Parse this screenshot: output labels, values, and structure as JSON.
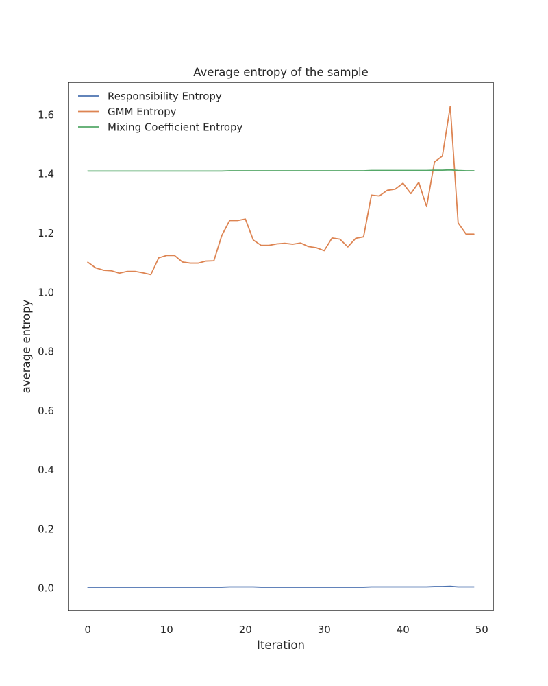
{
  "chart_data": {
    "type": "line",
    "title": "Average entropy of the sample",
    "xlabel": "Iteration",
    "ylabel": "average entropy",
    "xlim": [
      -2.45,
      51.45
    ],
    "ylim": [
      -0.075,
      1.71
    ],
    "xticks": [
      "0",
      "10",
      "20",
      "30",
      "40",
      "50"
    ],
    "xtick_values": [
      0,
      10,
      20,
      30,
      40,
      50
    ],
    "yticks": [
      "0.0",
      "0.2",
      "0.4",
      "0.6",
      "0.8",
      "1.0",
      "1.2",
      "1.4",
      "1.6"
    ],
    "ytick_values": [
      0.0,
      0.2,
      0.4,
      0.6,
      0.8,
      1.0,
      1.2,
      1.4,
      1.6
    ],
    "grid": false,
    "legend_position": "top-left",
    "x": [
      0,
      1,
      2,
      3,
      4,
      5,
      6,
      7,
      8,
      9,
      10,
      11,
      12,
      13,
      14,
      15,
      16,
      17,
      18,
      19,
      20,
      21,
      22,
      23,
      24,
      25,
      26,
      27,
      28,
      29,
      30,
      31,
      32,
      33,
      34,
      35,
      36,
      37,
      38,
      39,
      40,
      41,
      42,
      43,
      44,
      45,
      46,
      47,
      48,
      49
    ],
    "series": [
      {
        "name": "Responsibility Entropy",
        "color": "#4c72b0",
        "values": [
          0.004,
          0.004,
          0.004,
          0.004,
          0.004,
          0.004,
          0.004,
          0.004,
          0.004,
          0.004,
          0.004,
          0.004,
          0.004,
          0.004,
          0.004,
          0.004,
          0.004,
          0.004,
          0.005,
          0.005,
          0.005,
          0.005,
          0.004,
          0.004,
          0.004,
          0.004,
          0.004,
          0.004,
          0.004,
          0.004,
          0.004,
          0.004,
          0.004,
          0.004,
          0.004,
          0.004,
          0.005,
          0.005,
          0.005,
          0.005,
          0.005,
          0.005,
          0.005,
          0.005,
          0.006,
          0.006,
          0.007,
          0.005,
          0.005,
          0.005
        ]
      },
      {
        "name": "GMM Entropy",
        "color": "#dd8452",
        "values": [
          1.102,
          1.083,
          1.075,
          1.073,
          1.065,
          1.071,
          1.071,
          1.066,
          1.06,
          1.117,
          1.125,
          1.125,
          1.103,
          1.099,
          1.099,
          1.106,
          1.107,
          1.192,
          1.243,
          1.243,
          1.248,
          1.177,
          1.159,
          1.159,
          1.164,
          1.166,
          1.163,
          1.167,
          1.155,
          1.151,
          1.141,
          1.184,
          1.18,
          1.154,
          1.183,
          1.188,
          1.329,
          1.326,
          1.345,
          1.349,
          1.369,
          1.334,
          1.372,
          1.29,
          1.441,
          1.461,
          1.629,
          1.235,
          1.197,
          1.197
        ]
      },
      {
        "name": "Mixing Coefficient Entropy",
        "color": "#55a868",
        "values": [
          1.41,
          1.41,
          1.41,
          1.41,
          1.41,
          1.41,
          1.41,
          1.41,
          1.41,
          1.41,
          1.41,
          1.41,
          1.41,
          1.41,
          1.41,
          1.41,
          1.41,
          1.41,
          1.411,
          1.411,
          1.411,
          1.411,
          1.411,
          1.411,
          1.411,
          1.411,
          1.411,
          1.411,
          1.411,
          1.411,
          1.411,
          1.411,
          1.411,
          1.411,
          1.411,
          1.411,
          1.412,
          1.412,
          1.412,
          1.412,
          1.412,
          1.412,
          1.412,
          1.412,
          1.413,
          1.413,
          1.414,
          1.412,
          1.411,
          1.411
        ]
      }
    ]
  }
}
